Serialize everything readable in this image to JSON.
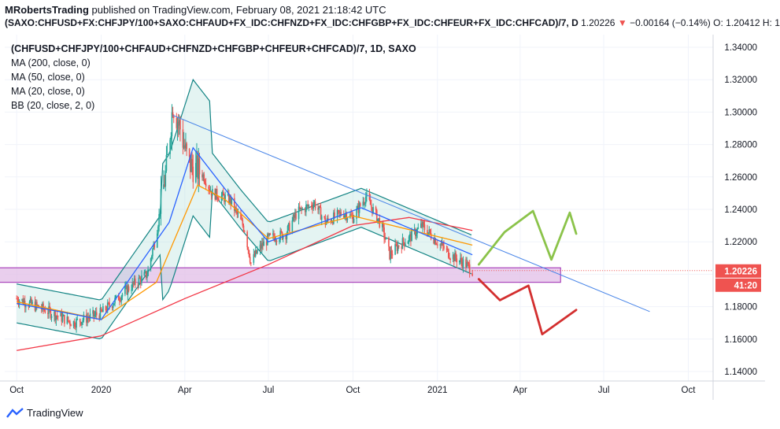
{
  "header": {
    "author": "MRobertsTrading",
    "published_text": "published on TradingView.com, February 08, 2021 21:18:42 UTC",
    "symbol_full": "(SAXO:CHFUSD+FX:CHFJPY/100+SAXO:CHFAUD+FX_IDC:CHFNZD+FX_IDC:CHFGBP+FX_IDC:CHFEUR+FX_IDC:CHFCAD)/7, D",
    "last": "1.20226",
    "change": "−0.00164 (−0.14%)",
    "ohlc": "O: 1.20412  H: 1"
  },
  "legend": {
    "title": "(CHFUSD+CHFJPY/100+CHFAUD+CHFNZD+CHFGBP+CHFEUR+CHFCAD)/7, 1D, SAXO",
    "ma200": "MA (200, close, 0)",
    "ma50": "MA (50, close, 0)",
    "ma20": "MA (20, close, 0)",
    "bb": "BB (20, close, 2, 0)"
  },
  "price_tag": {
    "price": "1.20226",
    "countdown": "41:20"
  },
  "footer": {
    "brand": "TradingView"
  },
  "colors": {
    "up": "#26a69a",
    "down": "#ef5350",
    "ma200": "#f23645",
    "ma50": "#ff9800",
    "ma20": "#2962ff",
    "bb": "#138484",
    "trendline": "#4a86e8",
    "zone_fill": "#e1bee7",
    "zone_border": "#9c27b0",
    "green_arrow": "#8bc34a",
    "red_arrow": "#d32f2f",
    "tag_bg": "#ef5350"
  },
  "chart_data": {
    "type": "candlestick",
    "title": "(CHFUSD+CHFJPY/100+CHFAUD+CHFNZD+CHFGBP+CHFEUR+CHFCAD)/7, 1D, SAXO",
    "x_tick_labels": [
      "Oct",
      "2020",
      "Apr",
      "Jul",
      "Oct",
      "2021",
      "Apr",
      "Jul",
      "Oct"
    ],
    "y_tick_labels": [
      "1.34000",
      "1.32000",
      "1.30000",
      "1.28000",
      "1.26000",
      "1.24000",
      "1.22000",
      "1.20000",
      "1.18000",
      "1.16000",
      "1.14000"
    ],
    "ylim": [
      1.135,
      1.345
    ],
    "last_price": 1.20226,
    "price_path": [
      [
        "2019-10-01",
        1.185
      ],
      [
        "2019-11-01",
        1.178
      ],
      [
        "2019-12-01",
        1.17
      ],
      [
        "2020-01-01",
        1.176
      ],
      [
        "2020-02-01",
        1.192
      ],
      [
        "2020-02-20",
        1.2
      ],
      [
        "2020-03-01",
        1.225
      ],
      [
        "2020-03-12",
        1.265
      ],
      [
        "2020-03-19",
        1.305
      ],
      [
        "2020-03-27",
        1.29
      ],
      [
        "2020-04-05",
        1.268
      ],
      [
        "2020-04-20",
        1.262
      ],
      [
        "2020-05-01",
        1.25
      ],
      [
        "2020-05-20",
        1.246
      ],
      [
        "2020-06-05",
        1.228
      ],
      [
        "2020-06-12",
        1.207
      ],
      [
        "2020-06-20",
        1.215
      ],
      [
        "2020-07-01",
        1.222
      ],
      [
        "2020-07-20",
        1.225
      ],
      [
        "2020-08-01",
        1.238
      ],
      [
        "2020-08-20",
        1.244
      ],
      [
        "2020-09-01",
        1.232
      ],
      [
        "2020-09-20",
        1.238
      ],
      [
        "2020-10-01",
        1.235
      ],
      [
        "2020-10-15",
        1.248
      ],
      [
        "2020-11-01",
        1.23
      ],
      [
        "2020-11-10",
        1.212
      ],
      [
        "2020-11-20",
        1.218
      ],
      [
        "2020-12-01",
        1.222
      ],
      [
        "2020-12-15",
        1.23
      ],
      [
        "2021-01-01",
        1.22
      ],
      [
        "2021-01-15",
        1.212
      ],
      [
        "2021-02-01",
        1.206
      ],
      [
        "2021-02-08",
        1.2023
      ]
    ],
    "series": [
      {
        "name": "MA (200, close, 0)",
        "values": [
          [
            "2019-10-01",
            1.153
          ],
          [
            "2020-01-01",
            1.162
          ],
          [
            "2020-04-01",
            1.185
          ],
          [
            "2020-07-01",
            1.206
          ],
          [
            "2020-10-01",
            1.23
          ],
          [
            "2020-12-01",
            1.235
          ],
          [
            "2021-02-08",
            1.227
          ]
        ]
      },
      {
        "name": "MA (50, close, 0)",
        "values": [
          [
            "2019-10-01",
            1.183
          ],
          [
            "2020-01-01",
            1.172
          ],
          [
            "2020-03-01",
            1.195
          ],
          [
            "2020-04-15",
            1.255
          ],
          [
            "2020-05-15",
            1.246
          ],
          [
            "2020-07-01",
            1.222
          ],
          [
            "2020-10-01",
            1.236
          ],
          [
            "2021-02-08",
            1.218
          ]
        ]
      },
      {
        "name": "MA (20, close, 0)",
        "values": [
          [
            "2019-10-01",
            1.182
          ],
          [
            "2020-01-01",
            1.172
          ],
          [
            "2020-03-15",
            1.232
          ],
          [
            "2020-04-10",
            1.278
          ],
          [
            "2020-06-01",
            1.24
          ],
          [
            "2020-07-01",
            1.22
          ],
          [
            "2020-10-10",
            1.241
          ],
          [
            "2021-02-08",
            1.212
          ]
        ]
      }
    ],
    "bollinger": {
      "name": "BB (20, close, 2, 0)",
      "width_estimate": 0.012
    },
    "drawings": {
      "trendline": {
        "from": [
          "2020-03-19",
          1.298
        ],
        "to": [
          "2021-08-20",
          1.177
        ]
      },
      "support_zone": {
        "from": "2019-09-01",
        "to": "2021-05-15",
        "low": 1.195,
        "high": 1.204
      },
      "green_path": [
        [
          "2021-02-15",
          1.206
        ],
        [
          "2021-03-15",
          1.226
        ],
        [
          "2021-04-15",
          1.239
        ],
        [
          "2021-05-05",
          1.209
        ],
        [
          "2021-05-25",
          1.238
        ],
        [
          "2021-06-01",
          1.225
        ]
      ],
      "red_path": [
        [
          "2021-02-15",
          1.197
        ],
        [
          "2021-03-10",
          1.184
        ],
        [
          "2021-04-10",
          1.193
        ],
        [
          "2021-04-25",
          1.163
        ],
        [
          "2021-06-01",
          1.178
        ]
      ]
    }
  }
}
